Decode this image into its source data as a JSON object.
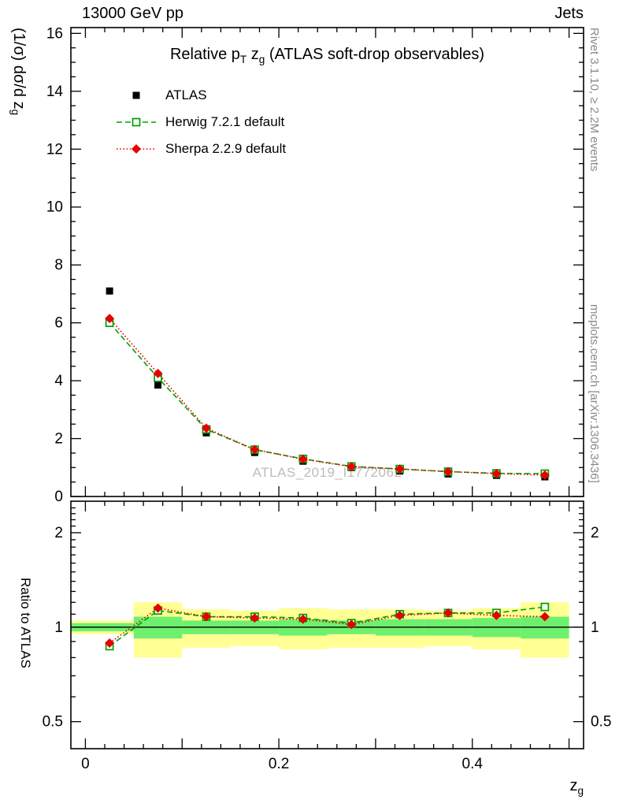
{
  "header": {
    "beam": "13000 GeV pp",
    "category": "Jets"
  },
  "title": {
    "pre": "Relative p",
    "sub1": "T",
    "mid": " z",
    "sub2": "g",
    "post": " (ATLAS soft-drop observables)"
  },
  "ylabel": {
    "pre": "(1/σ) dσ/d z",
    "sub": "g"
  },
  "xlabel": {
    "pre": "z",
    "sub": "g"
  },
  "ratio_ylabel": "Ratio to ATLAS",
  "watermark": "ATLAS_2019_I1772062",
  "side_notes": {
    "top": "Rivet 3.1.10, ≥ 2.2M events",
    "bottom": "mcplots.cern.ch [arXiv:1306.3436]"
  },
  "legend": [
    {
      "label": "ATLAS",
      "marker": "filled-square",
      "color": "#000000",
      "line": "none"
    },
    {
      "label": "Herwig 7.2.1 default",
      "marker": "open-square",
      "color": "#00a000",
      "line": "dashed"
    },
    {
      "label": "Sherpa 2.2.9 default",
      "marker": "filled-diamond",
      "color": "#e60000",
      "line": "dotted"
    }
  ],
  "chart_data": {
    "type": "line",
    "title": "Relative pT zg (ATLAS soft-drop observables)",
    "xlabel": "zg",
    "x": [
      0.025,
      0.075,
      0.125,
      0.175,
      0.225,
      0.275,
      0.325,
      0.375,
      0.425,
      0.475
    ],
    "bin_edges": [
      0,
      0.05,
      0.1,
      0.15,
      0.2,
      0.25,
      0.3,
      0.35,
      0.4,
      0.45,
      0.5
    ],
    "xlim": [
      -0.015,
      0.515
    ],
    "xticks": [
      0,
      0.2,
      0.4
    ],
    "xtick_labels": [
      "0",
      "0.2",
      "0.4"
    ],
    "main": {
      "ylabel": "(1/σ) dσ/d zg",
      "ylim": [
        0,
        16.2
      ],
      "yticks": [
        0,
        2,
        4,
        6,
        8,
        10,
        12,
        14,
        16
      ],
      "series": [
        {
          "name": "ATLAS",
          "color": "#000000",
          "marker": "filled-square",
          "line": "none",
          "values": [
            7.1,
            3.85,
            2.2,
            1.52,
            1.22,
            1.0,
            0.88,
            0.78,
            0.73,
            0.68
          ],
          "yerr": [
            0.12,
            0.08,
            0.05,
            0.04,
            0.03,
            0.03,
            0.02,
            0.02,
            0.02,
            0.02
          ]
        },
        {
          "name": "Herwig 7.2.1 default",
          "color": "#00a000",
          "marker": "open-square",
          "line": "dashed",
          "values": [
            6.0,
            4.1,
            2.32,
            1.62,
            1.3,
            1.04,
            0.95,
            0.86,
            0.8,
            0.79
          ]
        },
        {
          "name": "Sherpa 2.2.9 default",
          "color": "#e60000",
          "marker": "filled-diamond",
          "line": "dotted",
          "values": [
            6.15,
            4.25,
            2.36,
            1.62,
            1.29,
            1.03,
            0.95,
            0.86,
            0.79,
            0.74
          ]
        }
      ]
    },
    "ratio": {
      "ylabel": "Ratio to ATLAS",
      "scale": "log",
      "ylim": [
        0.41,
        2.52
      ],
      "yticks": [
        0.5,
        1,
        2
      ],
      "ytick_labels": [
        "0.5",
        "1",
        "2"
      ],
      "reference": 1,
      "bands": {
        "yellow": {
          "color": "#ffff94",
          "low": [
            0.95,
            0.8,
            0.86,
            0.87,
            0.85,
            0.86,
            0.86,
            0.87,
            0.85,
            0.8
          ],
          "high": [
            1.05,
            1.2,
            1.14,
            1.13,
            1.15,
            1.14,
            1.14,
            1.13,
            1.15,
            1.2
          ]
        },
        "green": {
          "color": "#6ef06e",
          "low": [
            0.97,
            0.92,
            0.95,
            0.95,
            0.94,
            0.95,
            0.94,
            0.94,
            0.93,
            0.92
          ],
          "high": [
            1.03,
            1.08,
            1.05,
            1.05,
            1.06,
            1.05,
            1.06,
            1.06,
            1.07,
            1.08
          ]
        }
      },
      "series": [
        {
          "name": "Herwig 7.2.1 default",
          "color": "#00a000",
          "marker": "open-square",
          "line": "dashed",
          "values": [
            0.87,
            1.13,
            1.08,
            1.08,
            1.07,
            1.03,
            1.1,
            1.11,
            1.11,
            1.16
          ]
        },
        {
          "name": "Sherpa 2.2.9 default",
          "color": "#e60000",
          "marker": "filled-diamond",
          "line": "dotted",
          "values": [
            0.89,
            1.15,
            1.08,
            1.07,
            1.06,
            1.02,
            1.09,
            1.11,
            1.09,
            1.08
          ]
        }
      ]
    }
  }
}
